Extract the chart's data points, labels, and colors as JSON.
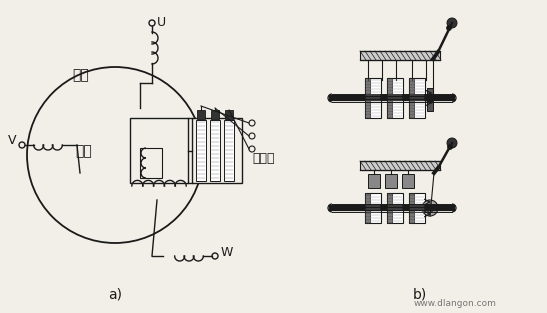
{
  "bg_color": "#f2efe8",
  "line_color": "#1a1a1a",
  "gray1": "#888888",
  "gray2": "#bbbbbb",
  "dark": "#333333",
  "label_U": "U",
  "label_V": "V",
  "label_W": "W",
  "label_stator": "定子",
  "label_rotor": "转子",
  "label_slip_ring": "集电环",
  "label_a": "a)",
  "label_b": "b)",
  "watermark": "www.dlangon.com",
  "fig_width": 5.47,
  "fig_height": 3.13,
  "dpi": 100
}
